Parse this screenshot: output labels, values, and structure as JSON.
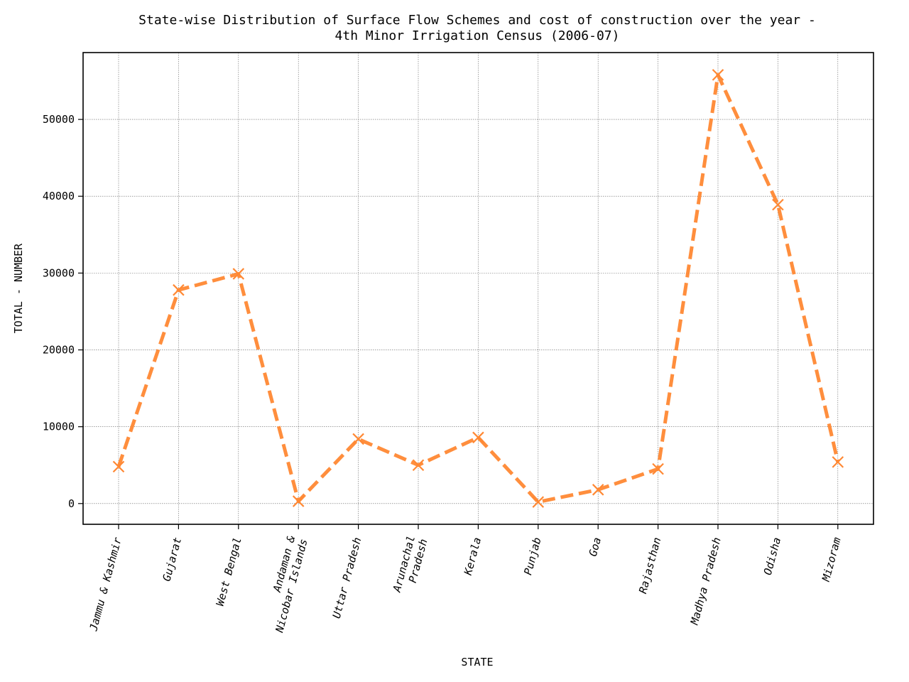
{
  "chart_data": {
    "type": "line",
    "title": "State-wise Distribution of Surface Flow Schemes and cost of construction over the year -",
    "subtitle": "4th Minor Irrigation Census (2006-07)",
    "xlabel": "STATE",
    "ylabel": "TOTAL - NUMBER",
    "categories": [
      "Jammu & Kashmir",
      "Gujarat",
      "West Bengal",
      "Andaman &|Nicobar Islands",
      "Uttar Pradesh",
      "Arunachal|Pradesh",
      "Kerala",
      "Punjab",
      "Goa",
      "Rajasthan",
      "Madhya Pradesh",
      "Odisha",
      "Mizoram"
    ],
    "values": [
      4800,
      27800,
      29900,
      300,
      8400,
      5000,
      8600,
      200,
      1800,
      4500,
      55800,
      38900,
      5400
    ],
    "ylim": [
      -2700,
      58700
    ],
    "yticks": [
      0,
      10000,
      20000,
      30000,
      40000,
      50000
    ],
    "grid": true,
    "line_color": "#ff8833",
    "line_style": "dashed",
    "marker": "x"
  }
}
